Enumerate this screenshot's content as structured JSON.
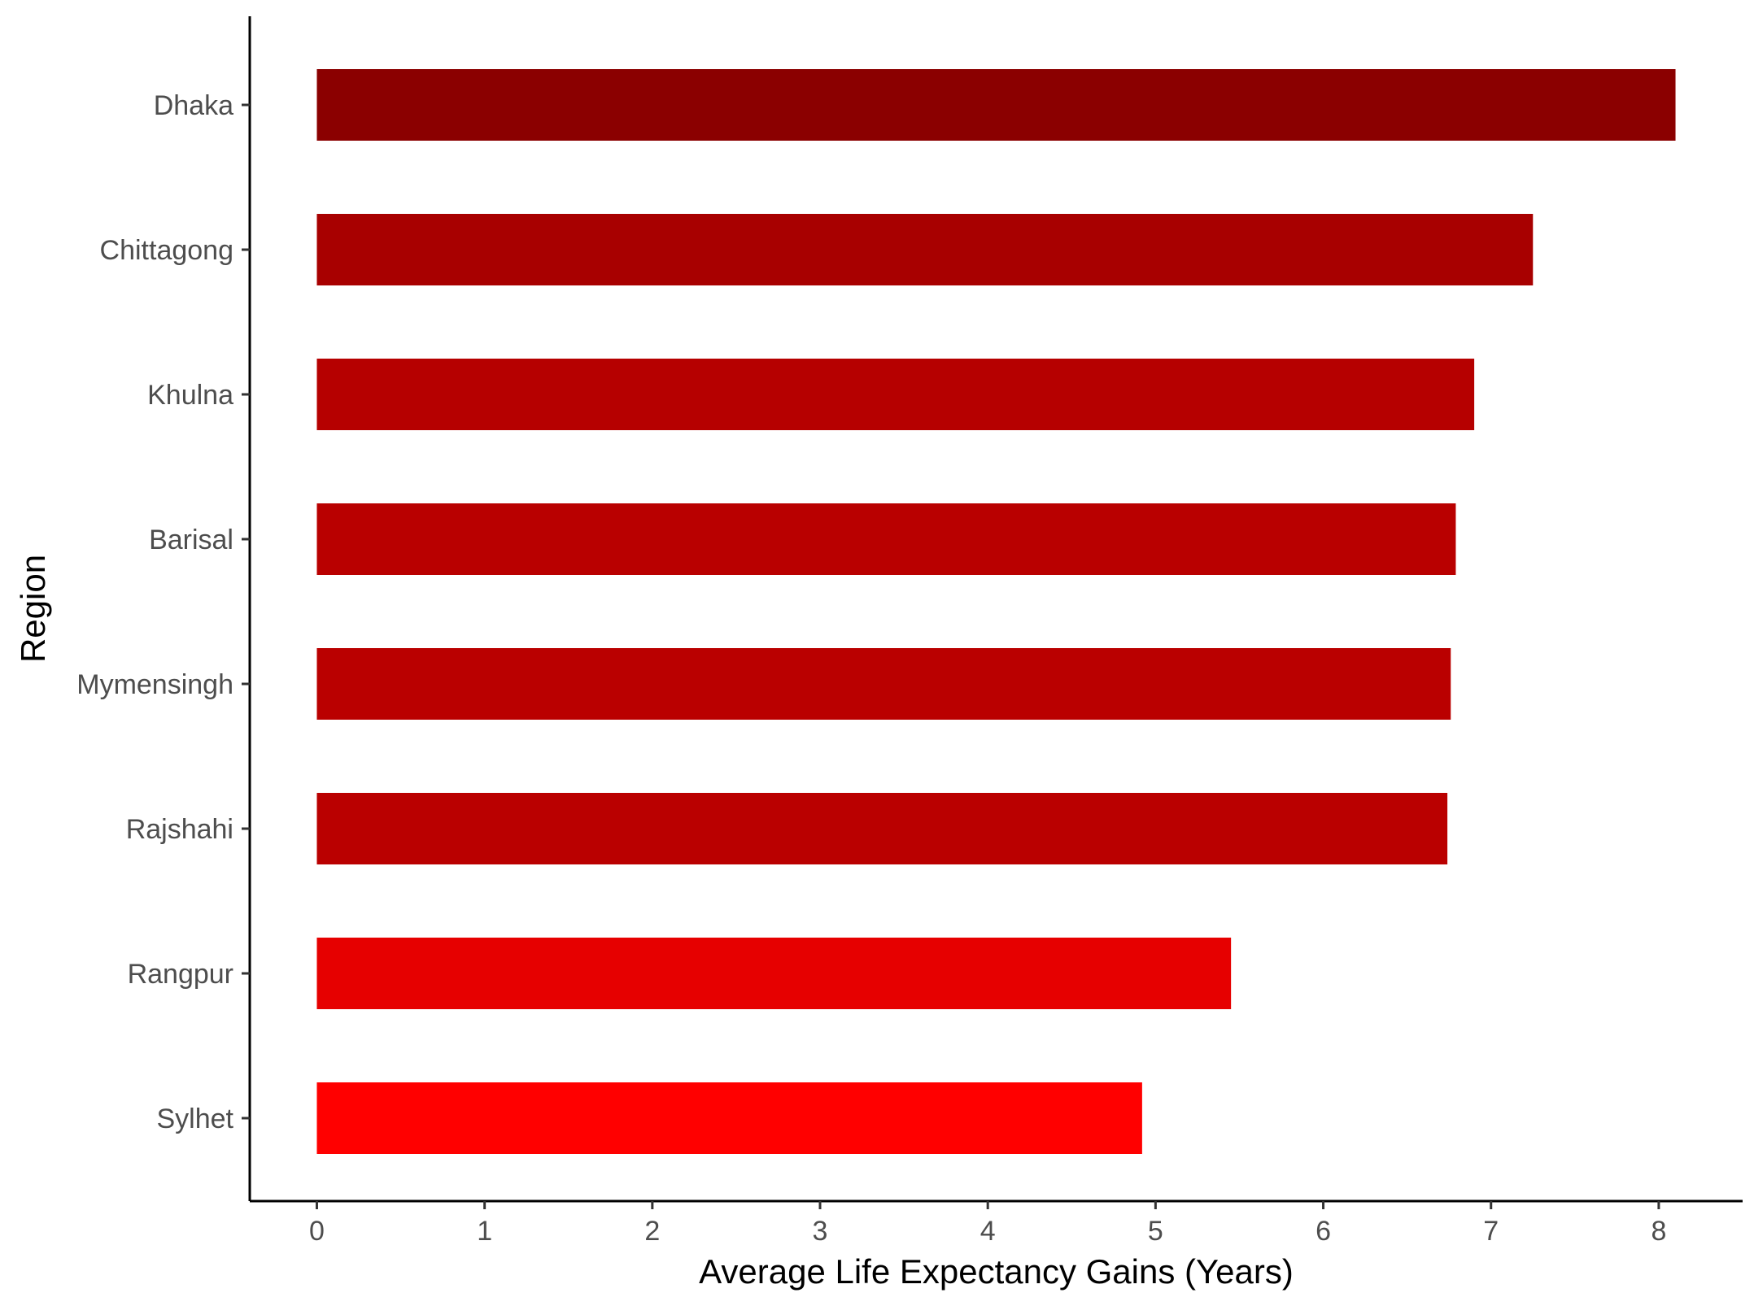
{
  "chart_data": {
    "type": "bar",
    "orientation": "horizontal",
    "categories": [
      "Dhaka",
      "Chittagong",
      "Khulna",
      "Barisal",
      "Mymensingh",
      "Rajshahi",
      "Rangpur",
      "Sylhet"
    ],
    "values": [
      8.1,
      7.25,
      6.9,
      6.79,
      6.76,
      6.74,
      5.45,
      4.92
    ],
    "colors": [
      "#8b0000",
      "#a80000",
      "#b60000",
      "#b90000",
      "#ba0000",
      "#ba0000",
      "#e60000",
      "#ff0000"
    ],
    "xlabel": "Average Life Expectancy Gains (Years)",
    "ylabel": "Region",
    "xlim": [
      -0.4,
      8.5
    ],
    "xticks": [
      0,
      1,
      2,
      3,
      4,
      5,
      6,
      7,
      8
    ],
    "grid": false,
    "legend": "none"
  }
}
